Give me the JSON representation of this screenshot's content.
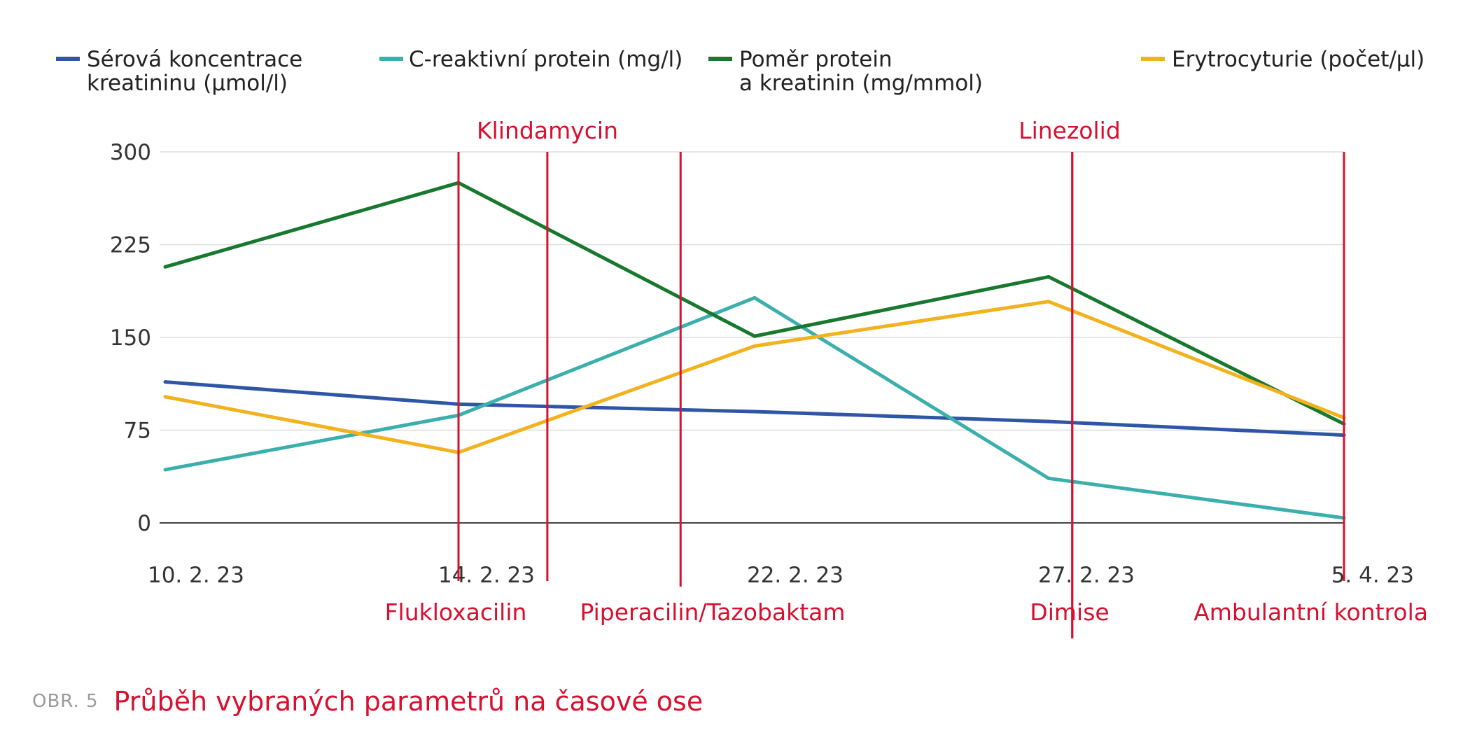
{
  "chart_data": {
    "type": "line",
    "x": [
      "10. 2. 23",
      "14. 2. 23",
      "22. 2. 23",
      "27. 2. 23",
      "5. 4. 23"
    ],
    "ylim": [
      0,
      300
    ],
    "yticks": [
      0,
      75,
      150,
      225,
      300
    ],
    "grid": true,
    "legend_position": "top",
    "series": [
      {
        "name_lines": [
          "Sérová koncentrace",
          "kreatininu (μmol/l)"
        ],
        "color": "#2f56a6",
        "values": [
          114,
          96,
          90,
          82,
          71
        ]
      },
      {
        "name_lines": [
          "C-reaktivní protein (mg/l)"
        ],
        "color": "#3aafac",
        "values": [
          43,
          87,
          182,
          36,
          4
        ]
      },
      {
        "name_lines": [
          "Poměr protein",
          "a kreatinin (mg/mmol)"
        ],
        "color": "#17782e",
        "values": [
          207,
          275,
          151,
          199,
          80
        ]
      },
      {
        "name_lines": [
          "Erytrocyturie (počet/μl)"
        ],
        "color": "#f2b21e",
        "values": [
          102,
          57,
          143,
          179,
          85
        ]
      }
    ],
    "events": [
      {
        "label": "Flukloxacilin",
        "position": "bottom",
        "x": 1
      },
      {
        "label": "Klindamycin",
        "position": "top",
        "x": 1.3
      },
      {
        "label": "Piperacilin/Tazobaktam",
        "position": "bottom",
        "x": 1.75
      },
      {
        "label": "Linezolid",
        "position": "top",
        "x": 3.08
      },
      {
        "label": "Dimise",
        "position": "bottom",
        "x": 3.08
      },
      {
        "label": "Ambulantní kontrola",
        "position": "bottom",
        "x": 4
      }
    ],
    "event_color": "#d8102f"
  },
  "caption": {
    "figure_number": "OBR. 5",
    "title": "Průběh vybraných parametrů na časové ose",
    "title_color": "#d8102f"
  }
}
